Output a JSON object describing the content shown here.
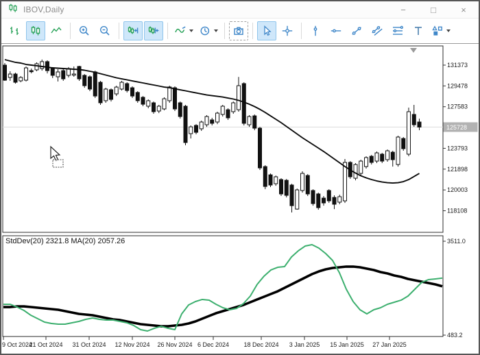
{
  "window": {
    "title": "IBOV,Daily",
    "controls": {
      "minimize": "−",
      "maximize": "□",
      "close": "×"
    }
  },
  "colors": {
    "icon_green": "#2aa35a",
    "icon_blue": "#3f87c9",
    "active_button_bg": "#cfe7fa",
    "active_button_border": "#8fc5ec",
    "stddev_line": "#3caf6e",
    "indicator_ma_line": "#000000",
    "price_line": "#dcdcdc",
    "price_badge_bg": "#b2b2b2"
  },
  "toolbar": {
    "groups": [
      [
        {
          "icon": "bar-chart-icon",
          "active": false
        },
        {
          "icon": "candlestick-chart-icon",
          "active": true
        },
        {
          "icon": "line-chart-icon",
          "active": false
        }
      ],
      [
        {
          "icon": "zoom-in-icon",
          "active": false
        },
        {
          "icon": "zoom-out-icon",
          "active": false
        }
      ],
      [
        {
          "icon": "chart-shift-icon",
          "active": true
        },
        {
          "icon": "auto-scroll-icon",
          "active": true
        }
      ],
      [
        {
          "icon": "indicators-icon",
          "active": false,
          "caret": true
        },
        {
          "icon": "timeframe-clock-icon",
          "active": false,
          "caret": true
        }
      ],
      [
        {
          "icon": "camera-icon",
          "active": false,
          "dashed": true
        }
      ],
      [
        {
          "icon": "cursor-icon",
          "active": true
        },
        {
          "icon": "crosshair-icon",
          "active": false
        }
      ],
      [
        {
          "icon": "vertical-line-icon",
          "active": false
        },
        {
          "icon": "horizontal-line-icon",
          "active": false
        },
        {
          "icon": "trendline-icon",
          "active": false
        },
        {
          "icon": "channel-icon",
          "active": false
        },
        {
          "icon": "fibonacci-retracement-icon",
          "active": false
        },
        {
          "icon": "text-icon",
          "active": false
        },
        {
          "icon": "shapes-icon",
          "active": false,
          "caret": true
        }
      ]
    ]
  },
  "chart": {
    "indicator_label": "StdDev(20) 2321.8 MA(20) 2057.26",
    "current_price_label": "125728",
    "price_axis_labels": [
      "131373",
      "129478",
      "127583",
      "123793",
      "121898",
      "120003",
      "118108"
    ],
    "indicator_axis_labels": [
      "3511.0",
      "483.2"
    ],
    "date_axis_labels": [
      "9 Oct 2024",
      "21 Oct 2024",
      "31 Oct 2024",
      "12 Nov 2024",
      "26 Nov 2024",
      "6 Dec 2024",
      "18 Dec 2024",
      "3 Jan 2025",
      "15 Jan 2025",
      "27 Jan 2025"
    ]
  },
  "chart_data": [
    {
      "type": "candlestick",
      "symbol": "IBOV",
      "timeframe": "Daily",
      "y_axis_ticks": [
        131373,
        129478,
        127583,
        123793,
        121898,
        120003,
        118108
      ],
      "current_price": 125728,
      "x_axis_tick_labels": [
        "9 Oct 2024",
        "21 Oct 2024",
        "31 Oct 2024",
        "12 Nov 2024",
        "26 Nov 2024",
        "6 Dec 2024",
        "18 Dec 2024",
        "3 Jan 2025",
        "15 Jan 2025",
        "27 Jan 2025"
      ],
      "ohlc": [
        [
          131370,
          131560,
          129940,
          130000
        ],
        [
          130250,
          130810,
          129940,
          130560
        ],
        [
          130560,
          130690,
          129690,
          129810
        ],
        [
          129940,
          130370,
          129810,
          130250
        ],
        [
          130000,
          131250,
          129880,
          131120
        ],
        [
          130870,
          131060,
          130620,
          130810
        ],
        [
          130940,
          131620,
          130810,
          131500
        ],
        [
          131060,
          131880,
          130870,
          131690
        ],
        [
          131690,
          131810,
          130620,
          130870
        ],
        [
          131060,
          131190,
          130190,
          130440
        ],
        [
          130310,
          131000,
          129880,
          130750
        ],
        [
          130870,
          131000,
          129940,
          130120
        ],
        [
          130440,
          131190,
          130250,
          131060
        ],
        [
          130500,
          131250,
          130310,
          130560
        ],
        [
          131250,
          131310,
          129940,
          130120
        ],
        [
          130440,
          130560,
          129310,
          129500
        ],
        [
          130310,
          130440,
          129000,
          129190
        ],
        [
          130750,
          130870,
          128380,
          128560
        ],
        [
          129810,
          129940,
          127750,
          127940
        ],
        [
          128130,
          129310,
          127940,
          129190
        ],
        [
          129130,
          129250,
          128060,
          128250
        ],
        [
          128750,
          129500,
          128560,
          129370
        ],
        [
          129190,
          129940,
          129060,
          129810
        ],
        [
          129690,
          129810,
          128880,
          129060
        ],
        [
          129310,
          129440,
          128380,
          128560
        ],
        [
          128880,
          129000,
          127940,
          128130
        ],
        [
          128440,
          128560,
          127630,
          127810
        ],
        [
          127630,
          128250,
          127440,
          128130
        ],
        [
          127940,
          128060,
          126940,
          127130
        ],
        [
          127190,
          127750,
          127000,
          127630
        ],
        [
          127380,
          128440,
          127250,
          128310
        ],
        [
          128130,
          129500,
          127940,
          129380
        ],
        [
          129310,
          129440,
          127190,
          127380
        ],
        [
          127940,
          128060,
          126500,
          126690
        ],
        [
          127630,
          127750,
          124070,
          124320
        ],
        [
          125130,
          125880,
          124690,
          125750
        ],
        [
          125880,
          126000,
          125070,
          125250
        ],
        [
          125570,
          126320,
          125380,
          126190
        ],
        [
          125940,
          126820,
          125750,
          126690
        ],
        [
          126380,
          126570,
          125880,
          126070
        ],
        [
          126190,
          127130,
          126000,
          127000
        ],
        [
          126880,
          127750,
          126690,
          127630
        ],
        [
          127310,
          127440,
          126380,
          126570
        ],
        [
          127130,
          128060,
          126940,
          127940
        ],
        [
          127310,
          130300,
          127130,
          129500
        ],
        [
          129690,
          129810,
          125880,
          126070
        ],
        [
          125940,
          126820,
          125750,
          126690
        ],
        [
          126750,
          126880,
          125440,
          125630
        ],
        [
          125630,
          125750,
          121820,
          122010
        ],
        [
          122130,
          122260,
          120070,
          120320
        ],
        [
          121380,
          121500,
          120260,
          120450
        ],
        [
          120570,
          121320,
          120380,
          121200
        ],
        [
          120950,
          121070,
          119450,
          119640
        ],
        [
          120880,
          121000,
          119320,
          119510
        ],
        [
          120450,
          120570,
          117950,
          118570
        ],
        [
          118260,
          120130,
          118200,
          120010
        ],
        [
          119950,
          121700,
          119760,
          121510
        ],
        [
          121320,
          121450,
          119450,
          119640
        ],
        [
          119950,
          120070,
          118570,
          118760
        ],
        [
          119640,
          119760,
          118200,
          118390
        ],
        [
          119260,
          119450,
          118570,
          118820
        ],
        [
          119950,
          120070,
          118820,
          119010
        ],
        [
          119320,
          119510,
          118260,
          118700
        ],
        [
          118890,
          119570,
          118700,
          119390
        ],
        [
          119010,
          122820,
          118820,
          122510
        ],
        [
          122510,
          122630,
          121010,
          121200
        ],
        [
          121070,
          122450,
          120880,
          122320
        ],
        [
          121510,
          122760,
          121320,
          122630
        ],
        [
          122130,
          123070,
          121950,
          122950
        ],
        [
          123070,
          123190,
          122320,
          122510
        ],
        [
          122630,
          123510,
          122450,
          123380
        ],
        [
          123260,
          123380,
          122450,
          122630
        ],
        [
          122760,
          123690,
          122570,
          123570
        ],
        [
          123440,
          123570,
          122130,
          122760
        ],
        [
          122320,
          124940,
          122130,
          124820
        ],
        [
          124690,
          124820,
          123570,
          123760
        ],
        [
          123260,
          127500,
          123070,
          127130
        ],
        [
          126880,
          127750,
          125750,
          125940
        ],
        [
          126190,
          126500,
          125440,
          125728
        ]
      ],
      "overlay_ma": [
        131872,
        131748,
        131623,
        131560,
        131435,
        131373,
        131311,
        131248,
        131186,
        131123,
        131092,
        131061,
        131030,
        130998,
        130967,
        130905,
        130811,
        130718,
        130593,
        130468,
        130343,
        130218,
        130124,
        130031,
        129937,
        129843,
        129750,
        129656,
        129563,
        129469,
        129375,
        129313,
        129219,
        129125,
        129032,
        128938,
        128844,
        128751,
        128657,
        128595,
        128532,
        128470,
        128376,
        128283,
        128158,
        128002,
        127814,
        127596,
        127346,
        127065,
        126753,
        126441,
        126129,
        125786,
        125442,
        125099,
        124756,
        124444,
        124132,
        123820,
        123507,
        123164,
        122821,
        122477,
        122134,
        121822,
        121541,
        121291,
        121104,
        120948,
        120823,
        120729,
        120667,
        120636,
        120667,
        120760,
        120948,
        121229,
        121510
      ]
    },
    {
      "type": "line",
      "panel": "indicator",
      "label": "StdDev(20) 2321.8 MA(20) 2057.26",
      "y_axis_ticks": [
        3511.0,
        483.2
      ],
      "series": [
        {
          "name": "StdDev(20)",
          "current": 2321.8,
          "color": "#3caf6e",
          "values": [
            1478,
            1478,
            1389,
            1279,
            1124,
            1014,
            903,
            859,
            837,
            837,
            881,
            925,
            992,
            1036,
            992,
            970,
            970,
            925,
            881,
            793,
            660,
            616,
            704,
            770,
            704,
            660,
            1168,
            1456,
            1566,
            1633,
            1611,
            1478,
            1367,
            1301,
            1345,
            1500,
            1743,
            2119,
            2384,
            2583,
            2671,
            2693,
            3003,
            3202,
            3356,
            3401,
            3290,
            3113,
            2892,
            2494,
            1964,
            1566,
            1301,
            1168,
            1301,
            1367,
            1478,
            1544,
            1611,
            1743,
            1964,
            2185,
            2274,
            2296,
            2322
          ]
        },
        {
          "name": "MA(20)",
          "current": 2057.26,
          "color": "#000000",
          "values": [
            1389,
            1389,
            1411,
            1411,
            1389,
            1367,
            1345,
            1323,
            1301,
            1257,
            1213,
            1168,
            1146,
            1124,
            1080,
            1036,
            992,
            970,
            925,
            881,
            837,
            815,
            793,
            770,
            770,
            793,
            815,
            859,
            925,
            1014,
            1102,
            1190,
            1257,
            1323,
            1389,
            1456,
            1544,
            1633,
            1721,
            1809,
            1897,
            2009,
            2119,
            2229,
            2340,
            2450,
            2538,
            2605,
            2649,
            2671,
            2693,
            2693,
            2671,
            2627,
            2583,
            2516,
            2472,
            2406,
            2362,
            2295,
            2251,
            2207,
            2163,
            2119,
            2057
          ]
        }
      ]
    }
  ]
}
